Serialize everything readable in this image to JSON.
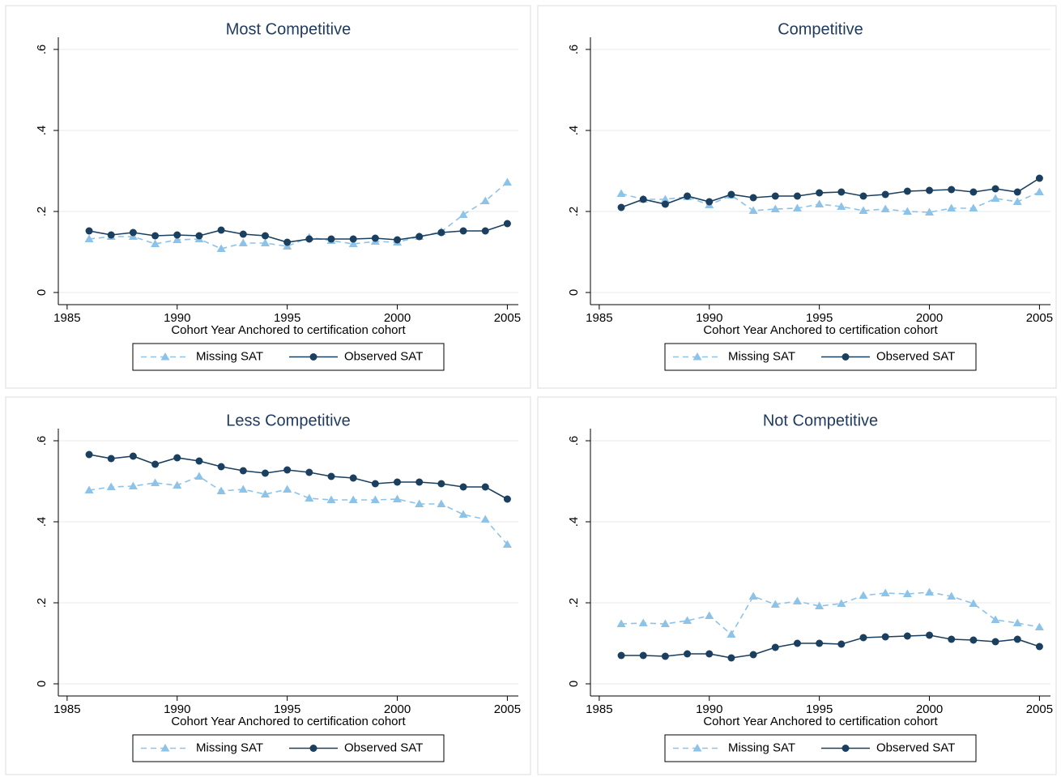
{
  "chart_data": [
    {
      "type": "line",
      "title": "Most Competitive",
      "xlabel": "Cohort Year Anchored to certification cohort",
      "x": [
        1986,
        1987,
        1988,
        1989,
        1990,
        1991,
        1992,
        1993,
        1994,
        1995,
        1996,
        1997,
        1998,
        1999,
        2000,
        2001,
        2002,
        2003,
        2004,
        2005
      ],
      "series": [
        {
          "name": "Missing SAT",
          "color": "#8dc3e8",
          "line_style": "dashed",
          "marker": "triangle",
          "values": [
            0.132,
            0.138,
            0.138,
            0.12,
            0.13,
            0.132,
            0.108,
            0.122,
            0.122,
            0.114,
            0.136,
            0.128,
            0.12,
            0.126,
            0.124,
            0.138,
            0.15,
            0.192,
            0.226,
            0.272
          ]
        },
        {
          "name": "Observed SAT",
          "color": "#1a3f5f",
          "line_style": "solid",
          "marker": "circle",
          "values": [
            0.152,
            0.142,
            0.148,
            0.14,
            0.142,
            0.14,
            0.154,
            0.144,
            0.14,
            0.124,
            0.132,
            0.132,
            0.132,
            0.134,
            0.13,
            0.138,
            0.148,
            0.152,
            0.152,
            0.17
          ]
        }
      ],
      "xlim": [
        1984.6,
        2005.5
      ],
      "xticks": [
        1985,
        1990,
        1995,
        2000,
        2005
      ],
      "ylim": [
        -0.03,
        0.63
      ],
      "yticks": [
        0,
        {
          "value": 0.2,
          "label": ".2"
        },
        {
          "value": 0.4,
          "label": ".4"
        },
        {
          "value": 0.6,
          "label": ".6"
        }
      ],
      "grid": true,
      "legend": "bottom"
    },
    {
      "type": "line",
      "title": "Competitive",
      "xlabel": "Cohort Year Anchored to certification cohort",
      "x": [
        1986,
        1987,
        1988,
        1989,
        1990,
        1991,
        1992,
        1993,
        1994,
        1995,
        1996,
        1997,
        1998,
        1999,
        2000,
        2001,
        2002,
        2003,
        2004,
        2005
      ],
      "series": [
        {
          "name": "Missing SAT",
          "color": "#8dc3e8",
          "line_style": "dashed",
          "marker": "triangle",
          "values": [
            0.244,
            0.23,
            0.23,
            0.236,
            0.216,
            0.24,
            0.202,
            0.206,
            0.208,
            0.218,
            0.212,
            0.202,
            0.206,
            0.2,
            0.198,
            0.208,
            0.208,
            0.232,
            0.224,
            0.248
          ]
        },
        {
          "name": "Observed SAT",
          "color": "#1a3f5f",
          "line_style": "solid",
          "marker": "circle",
          "values": [
            0.21,
            0.23,
            0.218,
            0.238,
            0.224,
            0.242,
            0.234,
            0.238,
            0.238,
            0.246,
            0.248,
            0.238,
            0.242,
            0.25,
            0.252,
            0.254,
            0.248,
            0.256,
            0.248,
            0.282
          ]
        }
      ],
      "xlim": [
        1984.6,
        2005.5
      ],
      "xticks": [
        1985,
        1990,
        1995,
        2000,
        2005
      ],
      "ylim": [
        -0.03,
        0.63
      ],
      "yticks": [
        0,
        {
          "value": 0.2,
          "label": ".2"
        },
        {
          "value": 0.4,
          "label": ".4"
        },
        {
          "value": 0.6,
          "label": ".6"
        }
      ],
      "grid": true,
      "legend": "bottom"
    },
    {
      "type": "line",
      "title": "Less Competitive",
      "xlabel": "Cohort Year Anchored to certification cohort",
      "x": [
        1986,
        1987,
        1988,
        1989,
        1990,
        1991,
        1992,
        1993,
        1994,
        1995,
        1996,
        1997,
        1998,
        1999,
        2000,
        2001,
        2002,
        2003,
        2004,
        2005
      ],
      "series": [
        {
          "name": "Missing SAT",
          "color": "#8dc3e8",
          "line_style": "dashed",
          "marker": "triangle",
          "values": [
            0.478,
            0.486,
            0.488,
            0.496,
            0.49,
            0.512,
            0.476,
            0.48,
            0.468,
            0.48,
            0.458,
            0.454,
            0.454,
            0.454,
            0.456,
            0.444,
            0.444,
            0.418,
            0.406,
            0.344
          ]
        },
        {
          "name": "Observed SAT",
          "color": "#1a3f5f",
          "line_style": "solid",
          "marker": "circle",
          "values": [
            0.566,
            0.556,
            0.562,
            0.542,
            0.558,
            0.55,
            0.536,
            0.526,
            0.52,
            0.528,
            0.522,
            0.512,
            0.508,
            0.494,
            0.498,
            0.498,
            0.494,
            0.486,
            0.486,
            0.456
          ]
        }
      ],
      "xlim": [
        1984.6,
        2005.5
      ],
      "xticks": [
        1985,
        1990,
        1995,
        2000,
        2005
      ],
      "ylim": [
        -0.03,
        0.63
      ],
      "yticks": [
        0,
        {
          "value": 0.2,
          "label": ".2"
        },
        {
          "value": 0.4,
          "label": ".4"
        },
        {
          "value": 0.6,
          "label": ".6"
        }
      ],
      "grid": true,
      "legend": "bottom"
    },
    {
      "type": "line",
      "title": "Not Competitive",
      "xlabel": "Cohort Year Anchored to certification cohort",
      "x": [
        1986,
        1987,
        1988,
        1989,
        1990,
        1991,
        1992,
        1993,
        1994,
        1995,
        1996,
        1997,
        1998,
        1999,
        2000,
        2001,
        2002,
        2003,
        2004,
        2005
      ],
      "series": [
        {
          "name": "Missing SAT",
          "color": "#8dc3e8",
          "line_style": "dashed",
          "marker": "triangle",
          "values": [
            0.148,
            0.15,
            0.148,
            0.156,
            0.168,
            0.122,
            0.216,
            0.196,
            0.204,
            0.192,
            0.198,
            0.218,
            0.224,
            0.222,
            0.226,
            0.216,
            0.198,
            0.158,
            0.15,
            0.14
          ]
        },
        {
          "name": "Observed SAT",
          "color": "#1a3f5f",
          "line_style": "solid",
          "marker": "circle",
          "values": [
            0.07,
            0.07,
            0.068,
            0.074,
            0.074,
            0.064,
            0.072,
            0.09,
            0.1,
            0.1,
            0.098,
            0.114,
            0.116,
            0.118,
            0.12,
            0.11,
            0.108,
            0.104,
            0.11,
            0.092
          ]
        }
      ],
      "xlim": [
        1984.6,
        2005.5
      ],
      "xticks": [
        1985,
        1990,
        1995,
        2000,
        2005
      ],
      "ylim": [
        -0.03,
        0.63
      ],
      "yticks": [
        0,
        {
          "value": 0.2,
          "label": ".2"
        },
        {
          "value": 0.4,
          "label": ".4"
        },
        {
          "value": 0.6,
          "label": ".6"
        }
      ],
      "grid": true,
      "legend": "bottom"
    }
  ]
}
